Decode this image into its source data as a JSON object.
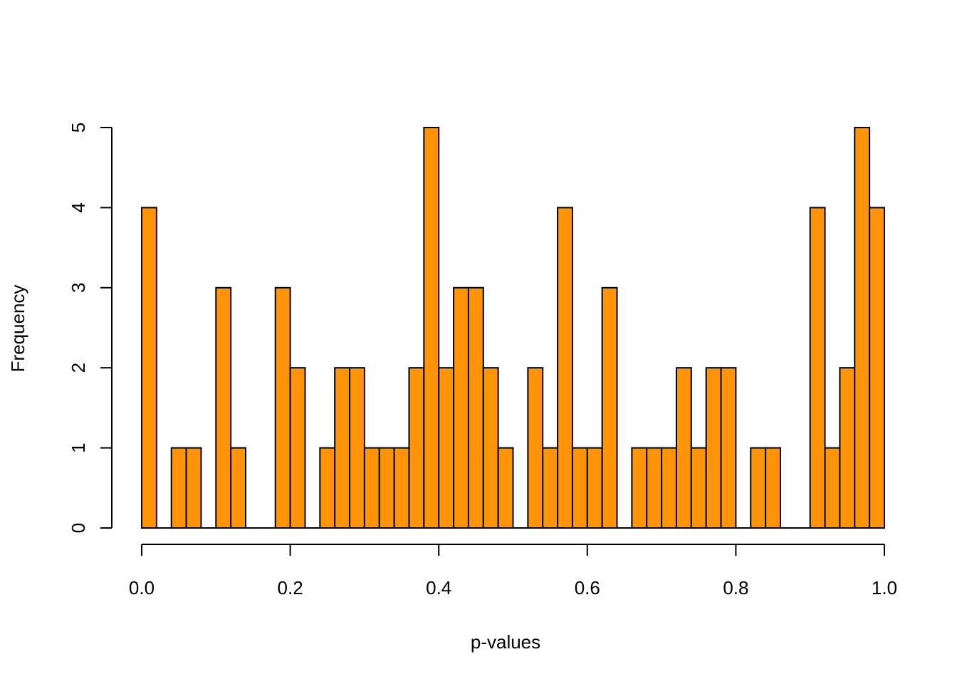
{
  "chart_data": {
    "type": "bar",
    "title": "",
    "xlabel": "p-values",
    "ylabel": "Frequency",
    "bin_width": 0.02,
    "bin_start": 0.0,
    "values": [
      4,
      0,
      1,
      1,
      0,
      3,
      1,
      0,
      0,
      3,
      2,
      0,
      1,
      2,
      2,
      1,
      1,
      1,
      2,
      5,
      2,
      3,
      3,
      2,
      1,
      0,
      2,
      1,
      4,
      1,
      1,
      3,
      0,
      1,
      1,
      1,
      2,
      1,
      2,
      2,
      0,
      1,
      1,
      0,
      0,
      4,
      1,
      2,
      5,
      4
    ],
    "xlim": [
      0,
      1
    ],
    "ylim": [
      0,
      5
    ],
    "x_ticks": [
      0.0,
      0.2,
      0.4,
      0.6,
      0.8,
      1.0
    ],
    "x_tick_labels": [
      "0.0",
      "0.2",
      "0.4",
      "0.6",
      "0.8",
      "1.0"
    ],
    "y_ticks": [
      0,
      1,
      2,
      3,
      4,
      5
    ],
    "y_tick_labels": [
      "0",
      "1",
      "2",
      "3",
      "4",
      "5"
    ],
    "bar_color": "#FF9408",
    "border_color": "#000000",
    "grid": false
  }
}
